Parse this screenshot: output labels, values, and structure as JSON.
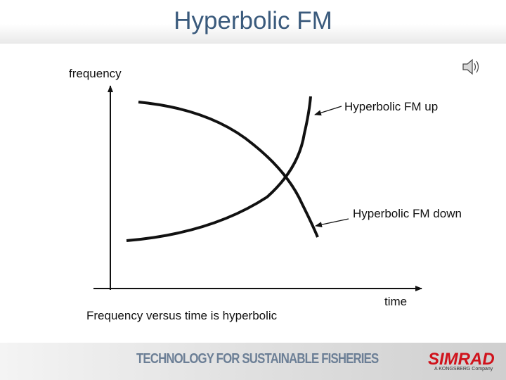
{
  "slide": {
    "title": "Hyperbolic FM"
  },
  "diagram": {
    "y_axis_label": "frequency",
    "x_axis_label": "time",
    "curve_up_label": "Hyperbolic FM up",
    "curve_down_label": "Hyperbolic FM down",
    "caption": "Frequency versus time is hyperbolic"
  },
  "footer": {
    "tagline": "TECHNOLOGY FOR SUSTAINABLE FISHERIES",
    "brand": "SIMRAD",
    "brand_sub": "A KONGSBERG Company"
  },
  "colors": {
    "title": "#3a5a7c",
    "brand": "#d0121b",
    "tagline": "#6c7f96"
  },
  "icons": [
    "speaker-icon"
  ]
}
